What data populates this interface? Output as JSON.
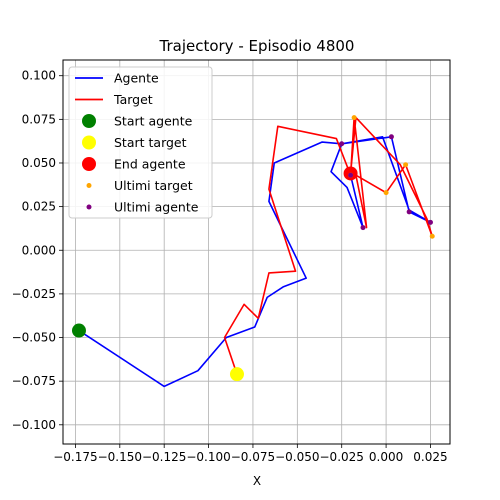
{
  "chart_data": {
    "type": "line",
    "title": "Trajectory - Episodio 4800",
    "xlabel": "X",
    "ylabel": "",
    "xlim": [
      -0.182,
      0.036
    ],
    "ylim": [
      -0.111,
      0.109
    ],
    "xticks": [
      -0.175,
      -0.15,
      -0.125,
      -0.1,
      -0.075,
      -0.05,
      -0.025,
      0.0,
      0.025
    ],
    "xtick_labels": [
      "−0.175",
      "−0.150",
      "−0.125",
      "−0.100",
      "−0.075",
      "−0.050",
      "−0.025",
      "0.000",
      "0.025"
    ],
    "yticks": [
      0.1,
      0.075,
      0.05,
      0.025,
      0.0,
      -0.025,
      -0.05,
      -0.075,
      -0.1
    ],
    "ytick_labels": [
      "0.100",
      "0.075",
      "0.050",
      "0.025",
      "0.000",
      "−0.025",
      "−0.050",
      "−0.075",
      "−0.100"
    ],
    "grid": true,
    "legend_position": "top-left",
    "series": [
      {
        "name": "Agente",
        "kind": "line",
        "color": "#0000ff",
        "points": [
          [
            -0.173,
            -0.046
          ],
          [
            -0.125,
            -0.078
          ],
          [
            -0.106,
            -0.069
          ],
          [
            -0.09,
            -0.05
          ],
          [
            -0.074,
            -0.044
          ],
          [
            -0.067,
            -0.027
          ],
          [
            -0.058,
            -0.021
          ],
          [
            -0.045,
            -0.016
          ],
          [
            -0.066,
            0.028
          ],
          [
            -0.063,
            0.05
          ],
          [
            -0.036,
            0.062
          ],
          [
            -0.025,
            0.061
          ],
          [
            -0.002,
            0.065
          ],
          [
            0.013,
            0.023
          ],
          [
            0.025,
            0.016
          ],
          [
            0.013,
            0.022
          ],
          [
            0.003,
            0.065
          ],
          [
            -0.025,
            0.061
          ],
          [
            -0.031,
            0.045
          ],
          [
            -0.022,
            0.036
          ],
          [
            -0.013,
            0.013
          ],
          [
            -0.02,
            0.043
          ]
        ]
      },
      {
        "name": "Target",
        "kind": "line",
        "color": "#ff0000",
        "points": [
          [
            -0.084,
            -0.071
          ],
          [
            -0.091,
            -0.05
          ],
          [
            -0.08,
            -0.031
          ],
          [
            -0.072,
            -0.039
          ],
          [
            -0.066,
            -0.013
          ],
          [
            -0.051,
            -0.012
          ],
          [
            -0.066,
            0.035
          ],
          [
            -0.061,
            0.071
          ],
          [
            -0.028,
            0.064
          ],
          [
            -0.02,
            0.043
          ],
          [
            -0.018,
            0.076
          ],
          [
            -0.011,
            0.013
          ],
          [
            -0.017,
            0.043
          ],
          [
            0.0,
            0.033
          ],
          [
            0.011,
            0.049
          ],
          [
            0.026,
            0.008
          ],
          [
            0.023,
            0.018
          ],
          [
            0.008,
            0.049
          ],
          [
            -0.017,
            0.076
          ],
          [
            -0.02,
            0.044
          ]
        ]
      },
      {
        "name": "Start agente",
        "kind": "marker",
        "color": "#008000",
        "radius": 7,
        "points": [
          [
            -0.173,
            -0.046
          ]
        ]
      },
      {
        "name": "Start target",
        "kind": "marker",
        "color": "#ffff00",
        "radius": 7,
        "points": [
          [
            -0.084,
            -0.071
          ]
        ]
      },
      {
        "name": "End agente",
        "kind": "marker",
        "color": "#ff0000",
        "radius": 7,
        "points": [
          [
            -0.02,
            0.044
          ]
        ]
      },
      {
        "name": "Ultimi target",
        "kind": "marker",
        "color": "#ffa500",
        "radius": 2.5,
        "points": [
          [
            -0.018,
            0.076
          ],
          [
            0.011,
            0.049
          ],
          [
            0.0,
            0.033
          ],
          [
            0.026,
            0.008
          ],
          [
            -0.02,
            0.043
          ]
        ]
      },
      {
        "name": "Ultimi agente",
        "kind": "marker",
        "color": "#800080",
        "radius": 2.5,
        "points": [
          [
            0.003,
            0.065
          ],
          [
            0.013,
            0.022
          ],
          [
            0.025,
            0.016
          ],
          [
            -0.025,
            0.061
          ],
          [
            -0.013,
            0.013
          ],
          [
            -0.02,
            0.043
          ]
        ]
      }
    ]
  }
}
